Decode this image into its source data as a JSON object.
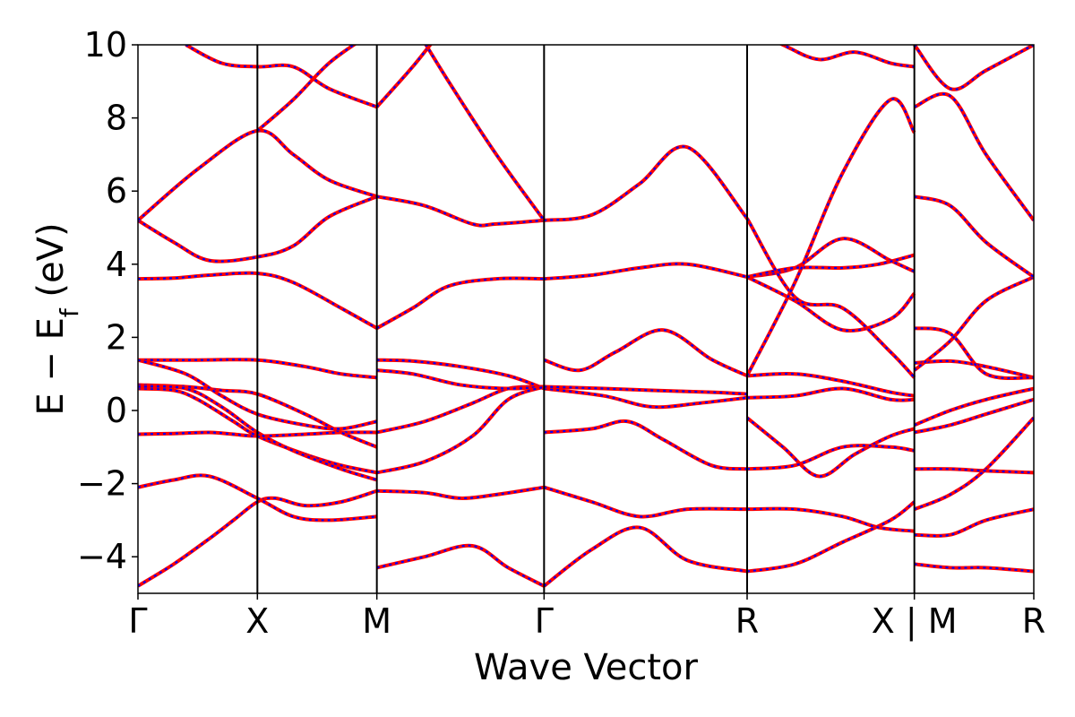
{
  "chart_data": {
    "type": "line",
    "xlabel": "Wave Vector",
    "ylabel": "E − E",
    "ylabel_subscript": "f",
    "ylabel_unit": " (eV)",
    "ylim": [
      -5,
      10
    ],
    "yticks": [
      -4,
      -2,
      0,
      2,
      4,
      6,
      8,
      10
    ],
    "ytick_labels": [
      "−4",
      "−2",
      "0",
      "2",
      "4",
      "6",
      "8",
      "10"
    ],
    "kpoint_positions": [
      0,
      1,
      2,
      3.4,
      5.1,
      6.5,
      7.5
    ],
    "kpoint_labels": [
      "Γ",
      "X",
      "M",
      "Γ",
      "R",
      "X | M",
      "R"
    ],
    "xlim": [
      0,
      7.5
    ],
    "grid": false,
    "series_colors": [
      "#ff0000",
      "#0000ff"
    ],
    "series_styles": [
      "solid",
      "dotted"
    ],
    "bands": [
      {
        "x": [
          0,
          0.3,
          0.6,
          0.8,
          1.0,
          1.15,
          1.4,
          1.7,
          2.0
        ],
        "y": [
          -4.8,
          -4.2,
          -3.5,
          -3.0,
          -2.5,
          -2.4,
          -2.6,
          -2.5,
          -2.2
        ]
      },
      {
        "x": [
          0,
          0.3,
          0.6,
          1.0,
          1.3,
          1.6,
          2.0
        ],
        "y": [
          -2.1,
          -1.9,
          -1.8,
          -2.4,
          -2.9,
          -3.0,
          -2.9
        ]
      },
      {
        "x": [
          0,
          0.3,
          0.6,
          0.8,
          1.0,
          1.4,
          1.7,
          2.0
        ],
        "y": [
          -0.65,
          -0.63,
          -0.6,
          -0.65,
          -0.7,
          -0.65,
          -0.6,
          -0.6
        ]
      },
      {
        "x": [
          0,
          0.3,
          0.5,
          0.8,
          1.0,
          1.4,
          1.7,
          2.0
        ],
        "y": [
          0.6,
          0.55,
          0.3,
          -0.3,
          -0.7,
          -1.2,
          -1.5,
          -1.7
        ]
      },
      {
        "x": [
          0,
          0.4,
          0.7,
          1.0,
          1.4,
          1.7,
          2.0
        ],
        "y": [
          0.7,
          0.65,
          0.55,
          0.45,
          -0.1,
          -0.6,
          -1.0
        ]
      },
      {
        "x": [
          0,
          0.4,
          0.7,
          1.0,
          1.3,
          1.7,
          2.0
        ],
        "y": [
          0.65,
          0.6,
          0.1,
          -0.6,
          -1.1,
          -1.6,
          -1.9
        ]
      },
      {
        "x": [
          0,
          0.5,
          1.0,
          1.4,
          1.7,
          2.0
        ],
        "y": [
          1.38,
          1.38,
          1.38,
          1.2,
          1.0,
          0.9
        ]
      },
      {
        "x": [
          0,
          0.4,
          0.7,
          1.0,
          1.4,
          1.7,
          2.0
        ],
        "y": [
          1.38,
          1.0,
          0.4,
          -0.1,
          -0.4,
          -0.5,
          -0.3
        ]
      },
      {
        "x": [
          0,
          0.3,
          0.6,
          1.0,
          1.3,
          1.7,
          2.0
        ],
        "y": [
          3.6,
          3.62,
          3.7,
          3.75,
          3.5,
          2.8,
          2.25
        ]
      },
      {
        "x": [
          0,
          0.3,
          0.6,
          1.0,
          1.3,
          1.6,
          2.0
        ],
        "y": [
          5.2,
          4.6,
          4.1,
          4.2,
          4.5,
          5.3,
          5.85
        ]
      },
      {
        "x": [
          0,
          0.5,
          1.0,
          1.3,
          1.6,
          2.0
        ],
        "y": [
          5.2,
          6.6,
          7.65,
          7.0,
          6.3,
          5.85
        ]
      },
      {
        "x": [
          1.0,
          1.3,
          1.6,
          1.9,
          2.1
        ],
        "y": [
          7.65,
          8.5,
          9.5,
          10.2,
          10.6
        ]
      },
      {
        "x": [
          0.4,
          0.7,
          1.0,
          1.3,
          1.6,
          2.0
        ],
        "y": [
          10.0,
          9.5,
          9.4,
          9.4,
          8.8,
          8.3
        ]
      },
      {
        "x": [
          2.0,
          2.4,
          2.7,
          3.0,
          3.4
        ],
        "y": [
          -2.2,
          -2.25,
          -2.4,
          -2.3,
          -2.1
        ]
      },
      {
        "x": [
          2.0,
          2.4,
          2.8,
          3.1,
          3.4
        ],
        "y": [
          -0.6,
          -0.3,
          0.2,
          0.6,
          0.65
        ]
      },
      {
        "x": [
          2.0,
          2.3,
          2.7,
          3.1,
          3.4
        ],
        "y": [
          1.38,
          1.35,
          1.2,
          0.95,
          0.6
        ]
      },
      {
        "x": [
          2.0,
          2.3,
          2.7,
          3.1,
          3.4
        ],
        "y": [
          1.1,
          1.0,
          0.7,
          0.6,
          0.65
        ]
      },
      {
        "x": [
          2.0,
          2.4,
          2.8,
          3.1,
          3.4
        ],
        "y": [
          -1.7,
          -1.4,
          -0.7,
          0.3,
          0.65
        ]
      },
      {
        "x": [
          2.0,
          2.3,
          2.6,
          3.0,
          3.4
        ],
        "y": [
          2.25,
          2.8,
          3.4,
          3.6,
          3.6
        ]
      },
      {
        "x": [
          2.0,
          2.4,
          2.8,
          3.0,
          3.4
        ],
        "y": [
          5.85,
          5.6,
          5.1,
          5.1,
          5.2
        ]
      },
      {
        "x": [
          2.0,
          2.3,
          2.6,
          2.9,
          3.2,
          3.4
        ],
        "y": [
          8.3,
          9.4,
          10.6,
          11.5,
          12,
          12
        ]
      },
      {
        "x": [
          2.3,
          2.6,
          3.0,
          3.4
        ],
        "y": [
          10.6,
          9.0,
          7.0,
          5.2
        ]
      },
      {
        "x": [
          2.0,
          2.4,
          2.8,
          3.1,
          3.4
        ],
        "y": [
          -4.3,
          -4.0,
          -3.7,
          -4.3,
          -4.8
        ]
      },
      {
        "x": [
          3.4,
          3.8,
          4.2,
          4.6,
          5.1
        ],
        "y": [
          -4.8,
          -3.8,
          -3.2,
          -4.1,
          -4.4
        ]
      },
      {
        "x": [
          3.4,
          3.8,
          4.2,
          4.6,
          5.1
        ],
        "y": [
          -2.1,
          -2.5,
          -2.9,
          -2.7,
          -2.7
        ]
      },
      {
        "x": [
          3.4,
          3.8,
          4.1,
          4.4,
          4.8,
          5.1
        ],
        "y": [
          -0.6,
          -0.5,
          -0.3,
          -0.8,
          -1.5,
          -1.6
        ]
      },
      {
        "x": [
          3.4,
          3.9,
          4.3,
          4.7,
          5.1
        ],
        "y": [
          0.6,
          0.4,
          0.1,
          0.2,
          0.35
        ]
      },
      {
        "x": [
          3.4,
          3.9,
          4.3,
          4.8,
          5.1
        ],
        "y": [
          0.65,
          0.6,
          0.55,
          0.5,
          0.45
        ]
      },
      {
        "x": [
          3.4,
          3.7,
          4.0,
          4.4,
          4.8,
          5.1
        ],
        "y": [
          1.38,
          1.1,
          1.6,
          2.2,
          1.4,
          0.95
        ]
      },
      {
        "x": [
          3.4,
          3.8,
          4.2,
          4.6,
          5.1
        ],
        "y": [
          3.6,
          3.7,
          3.9,
          4.0,
          3.65
        ]
      },
      {
        "x": [
          3.4,
          3.8,
          4.2,
          4.6,
          5.1
        ],
        "y": [
          5.2,
          5.35,
          6.2,
          7.2,
          5.25
        ]
      },
      {
        "x": [
          5.1,
          5.5,
          5.9,
          6.3,
          6.5
        ],
        "y": [
          -4.4,
          -4.2,
          -3.6,
          -3.0,
          -2.5
        ]
      },
      {
        "x": [
          5.1,
          5.5,
          5.9,
          6.2,
          6.5
        ],
        "y": [
          -2.7,
          -2.7,
          -2.9,
          -3.2,
          -3.3
        ]
      },
      {
        "x": [
          5.1,
          5.4,
          5.7,
          6.0,
          6.3,
          6.5
        ],
        "y": [
          -0.2,
          -1.0,
          -1.8,
          -1.2,
          -0.7,
          -0.5
        ]
      },
      {
        "x": [
          5.1,
          5.5,
          5.9,
          6.3,
          6.5
        ],
        "y": [
          -1.6,
          -1.5,
          -1.0,
          -1.0,
          -1.1
        ]
      },
      {
        "x": [
          5.1,
          5.5,
          5.9,
          6.3,
          6.5
        ],
        "y": [
          0.35,
          0.4,
          0.6,
          0.3,
          0.3
        ]
      },
      {
        "x": [
          5.1,
          5.5,
          5.9,
          6.3,
          6.5
        ],
        "y": [
          0.95,
          1.0,
          0.8,
          0.5,
          0.4
        ]
      },
      {
        "x": [
          5.1,
          5.5,
          5.9,
          6.3,
          6.5
        ],
        "y": [
          3.65,
          3.0,
          2.2,
          2.5,
          3.2
        ]
      },
      {
        "x": [
          5.1,
          5.5,
          5.9,
          6.3,
          6.5
        ],
        "y": [
          3.65,
          3.9,
          4.7,
          4.1,
          3.8
        ]
      },
      {
        "x": [
          5.1,
          5.5,
          5.9,
          6.2,
          6.5
        ],
        "y": [
          3.65,
          3.9,
          3.9,
          4.0,
          4.25
        ]
      },
      {
        "x": [
          5.1,
          5.5,
          5.9,
          6.3,
          6.5
        ],
        "y": [
          5.25,
          3.1,
          2.8,
          1.6,
          0.9
        ]
      },
      {
        "x": [
          5.1,
          5.5,
          5.9,
          6.3,
          6.5
        ],
        "y": [
          0.95,
          3.5,
          6.5,
          8.5,
          7.6
        ]
      },
      {
        "x": [
          5.1,
          5.4,
          5.7,
          6.0,
          6.3,
          6.5
        ],
        "y": [
          10.5,
          10.0,
          9.6,
          9.8,
          9.5,
          9.4
        ]
      },
      {
        "x": [
          6.5,
          6.8,
          7.1,
          7.5
        ],
        "y": [
          -4.2,
          -4.3,
          -4.3,
          -4.4
        ]
      },
      {
        "x": [
          6.5,
          6.8,
          7.1,
          7.5
        ],
        "y": [
          -3.4,
          -3.4,
          -3.0,
          -2.7
        ]
      },
      {
        "x": [
          6.5,
          6.8,
          7.1,
          7.5
        ],
        "y": [
          -2.7,
          -2.3,
          -1.6,
          -0.2
        ]
      },
      {
        "x": [
          6.5,
          6.8,
          7.1,
          7.5
        ],
        "y": [
          -1.6,
          -1.6,
          -1.65,
          -1.7
        ]
      },
      {
        "x": [
          6.5,
          6.8,
          7.1,
          7.5
        ],
        "y": [
          -0.6,
          -0.4,
          -0.1,
          0.3
        ]
      },
      {
        "x": [
          6.5,
          6.8,
          7.1,
          7.5
        ],
        "y": [
          -0.4,
          0.0,
          0.3,
          0.6
        ]
      },
      {
        "x": [
          6.5,
          6.8,
          7.1,
          7.5
        ],
        "y": [
          1.3,
          1.35,
          1.2,
          0.9
        ]
      },
      {
        "x": [
          6.5,
          6.8,
          7.1,
          7.5
        ],
        "y": [
          2.25,
          2.1,
          1.0,
          0.9
        ]
      },
      {
        "x": [
          6.5,
          6.8,
          7.1,
          7.5
        ],
        "y": [
          1.1,
          1.9,
          3.0,
          3.65
        ]
      },
      {
        "x": [
          6.5,
          6.8,
          7.1,
          7.5
        ],
        "y": [
          5.85,
          5.6,
          4.6,
          3.65
        ]
      },
      {
        "x": [
          6.5,
          6.8,
          7.1,
          7.5
        ],
        "y": [
          8.3,
          8.6,
          7.0,
          5.2
        ]
      },
      {
        "x": [
          6.5,
          6.8,
          7.1,
          7.5
        ],
        "y": [
          10.0,
          8.8,
          9.3,
          10.0
        ]
      }
    ]
  }
}
